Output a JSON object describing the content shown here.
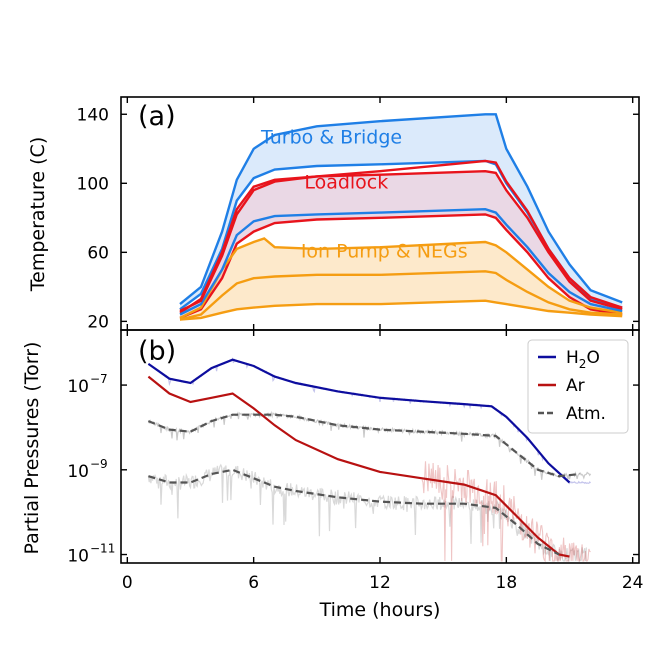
{
  "chart_data": [
    {
      "panel_label": "(a)",
      "type": "area",
      "title": "",
      "xlabel": "",
      "ylabel": "Temperature (C)",
      "xlim": [
        -0.3,
        24.3
      ],
      "ylim": [
        15,
        150
      ],
      "yticks": [
        20,
        60,
        100,
        140
      ],
      "xticks": [
        0,
        6,
        12,
        18,
        24
      ],
      "bands": [
        {
          "name": "Turbo & Bridge",
          "color": "#1f7fe6",
          "fill": "rgba(31,127,230,0.16)",
          "label_at": [
            9.7,
            123
          ],
          "upper": [
            [
              2.5,
              30
            ],
            [
              3.5,
              40
            ],
            [
              4.5,
              72
            ],
            [
              5.2,
              102
            ],
            [
              6,
              120
            ],
            [
              7,
              128
            ],
            [
              9,
              133
            ],
            [
              12,
              136
            ],
            [
              17,
              140
            ],
            [
              17.5,
              140
            ],
            [
              18,
              120
            ],
            [
              19,
              98
            ],
            [
              20,
              72
            ],
            [
              21,
              53
            ],
            [
              22,
              38
            ],
            [
              23.5,
              31
            ]
          ],
          "lower": [
            [
              2.5,
              27
            ],
            [
              3.5,
              36
            ],
            [
              4.5,
              62
            ],
            [
              5.2,
              90
            ],
            [
              6,
              103
            ],
            [
              7,
              108
            ],
            [
              9,
              110
            ],
            [
              12,
              111
            ],
            [
              17,
              113
            ],
            [
              17.5,
              111
            ],
            [
              18,
              100
            ],
            [
              19,
              83
            ],
            [
              20,
              62
            ],
            [
              21,
              45
            ],
            [
              22,
              33
            ],
            [
              23.5,
              28
            ]
          ]
        },
        {
          "name": "Loadlock",
          "color": "#e8141c",
          "fill": "rgba(140,40,110,0.18)",
          "label_at": [
            10.4,
            97
          ],
          "upper": [
            [
              2.5,
              25
            ],
            [
              3.5,
              33
            ],
            [
              4.5,
              60
            ],
            [
              5.2,
              85
            ],
            [
              6,
              98
            ],
            [
              7,
              102
            ],
            [
              9,
              104
            ],
            [
              12,
              105
            ],
            [
              17,
              107
            ],
            [
              17.5,
              106
            ],
            [
              18,
              96
            ],
            [
              19,
              80
            ],
            [
              20,
              60
            ],
            [
              21,
              43
            ],
            [
              22,
              32
            ],
            [
              23.5,
              27
            ]
          ],
          "lower": [
            [
              2.5,
              22
            ],
            [
              3.5,
              27
            ],
            [
              4.5,
              45
            ],
            [
              5.2,
              65
            ],
            [
              6,
              72
            ],
            [
              7,
              77
            ],
            [
              9,
              79
            ],
            [
              12,
              80
            ],
            [
              17,
              82
            ],
            [
              17.5,
              80
            ],
            [
              18,
              73
            ],
            [
              19,
              60
            ],
            [
              20,
              45
            ],
            [
              21,
              34
            ],
            [
              22,
              27
            ],
            [
              23.5,
              24
            ]
          ]
        },
        {
          "name": "Ion Pump & NEGs",
          "color": "#f59d12",
          "fill": "rgba(245,157,18,0.22)",
          "label_at": [
            12.2,
            57
          ],
          "upper": [
            [
              2.5,
              22
            ],
            [
              3.5,
              28
            ],
            [
              4.5,
              50
            ],
            [
              5.2,
              62
            ],
            [
              6,
              66
            ],
            [
              6.5,
              68
            ],
            [
              7,
              63
            ],
            [
              9,
              62
            ],
            [
              12,
              63
            ],
            [
              17,
              66
            ],
            [
              17.5,
              64
            ],
            [
              18,
              60
            ],
            [
              19,
              50
            ],
            [
              20,
              40
            ],
            [
              21,
              32
            ],
            [
              22,
              28
            ],
            [
              23.5,
              25
            ]
          ],
          "lower": [
            [
              2.5,
              21
            ],
            [
              3.5,
              22
            ],
            [
              4.5,
              25
            ],
            [
              5.2,
              27
            ],
            [
              6,
              28
            ],
            [
              7,
              29
            ],
            [
              9,
              30
            ],
            [
              12,
              30
            ],
            [
              17,
              32
            ],
            [
              17.5,
              31
            ],
            [
              18,
              30
            ],
            [
              19,
              28
            ],
            [
              20,
              26
            ],
            [
              21,
              25
            ],
            [
              22,
              24
            ],
            [
              23.5,
              23
            ]
          ]
        }
      ],
      "middle_lines": [
        {
          "color": "#1f7fe6",
          "points": [
            [
              2.5,
              24
            ],
            [
              3.5,
              30
            ],
            [
              4.5,
              50
            ],
            [
              5.2,
              70
            ],
            [
              6,
              78
            ],
            [
              7,
              81
            ],
            [
              9,
              82
            ],
            [
              12,
              83
            ],
            [
              17,
              85
            ],
            [
              17.5,
              83
            ],
            [
              18,
              76
            ],
            [
              19,
              63
            ],
            [
              20,
              48
            ],
            [
              21,
              37
            ],
            [
              22,
              30
            ],
            [
              23.5,
              26
            ]
          ]
        },
        {
          "color": "#e8141c",
          "points": [
            [
              2.5,
              26
            ],
            [
              3.5,
              32
            ],
            [
              4.5,
              58
            ],
            [
              5.2,
              82
            ],
            [
              6,
              96
            ],
            [
              7,
              101
            ],
            [
              9,
              104
            ],
            [
              12,
              107
            ],
            [
              17,
              113
            ],
            [
              17.5,
              112
            ],
            [
              18,
              101
            ],
            [
              19,
              84
            ],
            [
              20,
              62
            ],
            [
              21,
              45
            ],
            [
              22,
              34
            ],
            [
              23.5,
              28
            ]
          ]
        },
        {
          "color": "#f59d12",
          "points": [
            [
              2.5,
              21
            ],
            [
              3.5,
              24
            ],
            [
              4.5,
              35
            ],
            [
              5.2,
              42
            ],
            [
              6,
              45
            ],
            [
              7,
              46
            ],
            [
              9,
              47
            ],
            [
              12,
              47
            ],
            [
              17,
              49
            ],
            [
              17.5,
              48
            ],
            [
              18,
              44
            ],
            [
              19,
              37
            ],
            [
              20,
              31
            ],
            [
              21,
              27
            ],
            [
              22,
              25
            ],
            [
              23.5,
              24
            ]
          ]
        }
      ]
    },
    {
      "panel_label": "(b)",
      "type": "line",
      "title": "",
      "xlabel": "Time (hours)",
      "ylabel": "Partial Pressures (Torr)",
      "xlim": [
        -0.3,
        24.3
      ],
      "ylim_log10": [
        -11.2,
        -5.7
      ],
      "yticks_log10": [
        -7,
        -9,
        -11
      ],
      "ytick_labels": [
        {
          "base": "10",
          "exp": "−7"
        },
        {
          "base": "10",
          "exp": "−9"
        },
        {
          "base": "10",
          "exp": "−11"
        }
      ],
      "xticks": [
        0,
        6,
        12,
        18,
        24
      ],
      "xtick_labels": [
        "0",
        "6",
        "12",
        "18",
        "24"
      ],
      "legend_position": "top-right",
      "series": [
        {
          "name": "H2O",
          "legend_label": "H",
          "legend_sub": "2",
          "legend_tail": "O",
          "color": "#0d0d9e",
          "style": "solid",
          "log10_values": [
            [
              1,
              -6.5
            ],
            [
              2,
              -6.85
            ],
            [
              3,
              -6.95
            ],
            [
              4,
              -6.6
            ],
            [
              5,
              -6.4
            ],
            [
              6,
              -6.55
            ],
            [
              7,
              -6.8
            ],
            [
              8,
              -6.95
            ],
            [
              10,
              -7.15
            ],
            [
              12,
              -7.3
            ],
            [
              14,
              -7.38
            ],
            [
              16,
              -7.45
            ],
            [
              17.3,
              -7.5
            ],
            [
              18,
              -7.75
            ],
            [
              19,
              -8.25
            ],
            [
              20,
              -8.85
            ],
            [
              21,
              -9.3
            ]
          ]
        },
        {
          "name": "Ar",
          "legend_label": "Ar",
          "color": "#b81111",
          "style": "solid",
          "log10_values": [
            [
              1,
              -6.8
            ],
            [
              2,
              -7.2
            ],
            [
              3,
              -7.4
            ],
            [
              4,
              -7.3
            ],
            [
              5,
              -7.2
            ],
            [
              6,
              -7.55
            ],
            [
              7,
              -7.95
            ],
            [
              8,
              -8.3
            ],
            [
              10,
              -8.75
            ],
            [
              12,
              -9.05
            ],
            [
              14,
              -9.2
            ],
            [
              16,
              -9.35
            ],
            [
              17.5,
              -9.6
            ],
            [
              18.5,
              -10.1
            ],
            [
              19.5,
              -10.6
            ],
            [
              20.5,
              -11.0
            ],
            [
              21,
              -11.05
            ]
          ]
        },
        {
          "name": "Atm.",
          "legend_label": "Atm.",
          "color": "#555555",
          "style": "dashed",
          "log10_values": [
            [
              1,
              -7.85
            ],
            [
              2,
              -8.05
            ],
            [
              3,
              -8.1
            ],
            [
              4,
              -7.85
            ],
            [
              5,
              -7.7
            ],
            [
              6,
              -7.7
            ],
            [
              7,
              -7.7
            ],
            [
              8,
              -7.75
            ],
            [
              10,
              -7.95
            ],
            [
              12,
              -8.05
            ],
            [
              14,
              -8.1
            ],
            [
              16,
              -8.15
            ],
            [
              17.5,
              -8.2
            ],
            [
              18.5,
              -8.6
            ],
            [
              19.5,
              -9.0
            ],
            [
              20.5,
              -9.15
            ],
            [
              21.5,
              -9.1
            ]
          ]
        },
        {
          "name": "Atm. (lower)",
          "color": "#555555",
          "style": "dashed",
          "log10_values": [
            [
              1,
              -9.15
            ],
            [
              2,
              -9.3
            ],
            [
              3,
              -9.3
            ],
            [
              4,
              -9.1
            ],
            [
              5,
              -9.0
            ],
            [
              6,
              -9.2
            ],
            [
              7,
              -9.4
            ],
            [
              8,
              -9.5
            ],
            [
              10,
              -9.65
            ],
            [
              12,
              -9.75
            ],
            [
              14,
              -9.8
            ],
            [
              16,
              -9.8
            ],
            [
              17.5,
              -9.9
            ],
            [
              18.5,
              -10.3
            ],
            [
              19.5,
              -10.75
            ],
            [
              20.5,
              -11.0
            ]
          ]
        }
      ],
      "legend_entries": [
        "H2O",
        "Ar",
        "Atm."
      ]
    }
  ]
}
